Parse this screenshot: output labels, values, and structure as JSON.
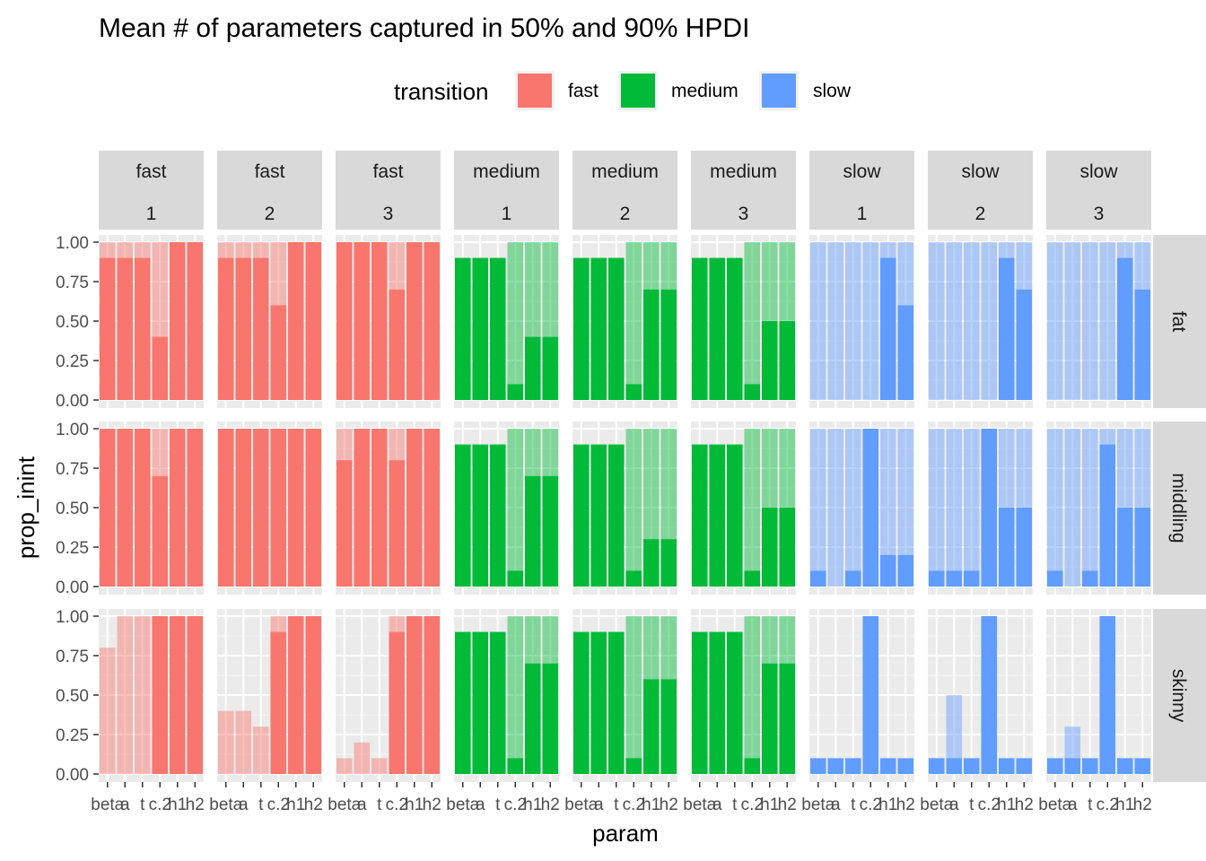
{
  "chart_data": {
    "type": "bar",
    "title": "Mean # of parameters captured in 50% and 90% HPDI",
    "xlabel": "param",
    "ylabel": "prop_inint",
    "categories": [
      "beta",
      "a",
      "t",
      "c.2",
      "h1",
      "h2"
    ],
    "x_tick_labels": [
      "beta",
      "a",
      "t",
      "c.2",
      "h1",
      "h2"
    ],
    "y_ticks": [
      "0.00",
      "0.25",
      "0.50",
      "0.75",
      "1.00"
    ],
    "ylim": [
      0,
      1
    ],
    "grid": true,
    "legend": {
      "title": "transition",
      "position": "top",
      "entries": [
        {
          "label": "fast",
          "color": "#F8766D"
        },
        {
          "label": "medium",
          "color": "#00BA38"
        },
        {
          "label": "slow",
          "color": "#619CFF"
        }
      ]
    },
    "facet_columns": [
      {
        "transition": "fast",
        "index": "1"
      },
      {
        "transition": "fast",
        "index": "2"
      },
      {
        "transition": "fast",
        "index": "3"
      },
      {
        "transition": "medium",
        "index": "1"
      },
      {
        "transition": "medium",
        "index": "2"
      },
      {
        "transition": "medium",
        "index": "3"
      },
      {
        "transition": "slow",
        "index": "1"
      },
      {
        "transition": "slow",
        "index": "2"
      },
      {
        "transition": "slow",
        "index": "3"
      }
    ],
    "facet_rows": [
      "fat",
      "middling",
      "skinny"
    ],
    "series_note": "Per facet: hpdi90 = translucent bar, hpdi50 = solid bar, values in category order",
    "panels": [
      {
        "row": "fat",
        "col": 0,
        "hpdi90": [
          1,
          1,
          1,
          1,
          1,
          1
        ],
        "hpdi50": [
          0.9,
          0.9,
          0.9,
          0.4,
          1,
          1
        ]
      },
      {
        "row": "fat",
        "col": 1,
        "hpdi90": [
          1,
          1,
          1,
          1,
          1,
          1
        ],
        "hpdi50": [
          0.9,
          0.9,
          0.9,
          0.6,
          1,
          1
        ]
      },
      {
        "row": "fat",
        "col": 2,
        "hpdi90": [
          1,
          1,
          1,
          1,
          1,
          1
        ],
        "hpdi50": [
          1,
          1,
          1,
          0.7,
          1,
          1
        ]
      },
      {
        "row": "fat",
        "col": 3,
        "hpdi90": [
          0.9,
          0.9,
          0.9,
          1,
          1,
          1
        ],
        "hpdi50": [
          0.9,
          0.9,
          0.9,
          0.1,
          0.4,
          0.4
        ]
      },
      {
        "row": "fat",
        "col": 4,
        "hpdi90": [
          0.9,
          0.9,
          0.9,
          1,
          1,
          1
        ],
        "hpdi50": [
          0.9,
          0.9,
          0.9,
          0.1,
          0.7,
          0.7
        ]
      },
      {
        "row": "fat",
        "col": 5,
        "hpdi90": [
          0.9,
          0.9,
          0.9,
          1,
          1,
          1
        ],
        "hpdi50": [
          0.9,
          0.9,
          0.9,
          0.1,
          0.5,
          0.5
        ]
      },
      {
        "row": "fat",
        "col": 6,
        "hpdi90": [
          1,
          1,
          1,
          1,
          1,
          1
        ],
        "hpdi50": [
          0,
          0,
          0,
          0,
          0.9,
          0.6
        ]
      },
      {
        "row": "fat",
        "col": 7,
        "hpdi90": [
          1,
          1,
          1,
          1,
          1,
          1
        ],
        "hpdi50": [
          0,
          0,
          0,
          0,
          0.9,
          0.7
        ]
      },
      {
        "row": "fat",
        "col": 8,
        "hpdi90": [
          1,
          1,
          1,
          1,
          1,
          1
        ],
        "hpdi50": [
          0,
          0,
          0,
          0,
          0.9,
          0.7
        ]
      },
      {
        "row": "middling",
        "col": 0,
        "hpdi90": [
          1,
          1,
          1,
          1,
          1,
          1
        ],
        "hpdi50": [
          1,
          1,
          1,
          0.7,
          1,
          1
        ]
      },
      {
        "row": "middling",
        "col": 1,
        "hpdi90": [
          1,
          1,
          1,
          1,
          1,
          1
        ],
        "hpdi50": [
          1,
          1,
          1,
          1,
          1,
          1
        ]
      },
      {
        "row": "middling",
        "col": 2,
        "hpdi90": [
          1,
          1,
          1,
          1,
          1,
          1
        ],
        "hpdi50": [
          0.8,
          1,
          1,
          0.8,
          1,
          1
        ]
      },
      {
        "row": "middling",
        "col": 3,
        "hpdi90": [
          0.9,
          0.9,
          0.9,
          1,
          1,
          1
        ],
        "hpdi50": [
          0.9,
          0.9,
          0.9,
          0.1,
          0.7,
          0.7
        ]
      },
      {
        "row": "middling",
        "col": 4,
        "hpdi90": [
          0.9,
          0.9,
          0.9,
          1,
          1,
          1
        ],
        "hpdi50": [
          0.9,
          0.9,
          0.9,
          0.1,
          0.3,
          0.3
        ]
      },
      {
        "row": "middling",
        "col": 5,
        "hpdi90": [
          0.9,
          0.9,
          0.9,
          1,
          1,
          1
        ],
        "hpdi50": [
          0.9,
          0.9,
          0.9,
          0.1,
          0.5,
          0.5
        ]
      },
      {
        "row": "middling",
        "col": 6,
        "hpdi90": [
          1,
          1,
          1,
          1,
          1,
          1
        ],
        "hpdi50": [
          0.1,
          0,
          0.1,
          1,
          0.2,
          0.2
        ]
      },
      {
        "row": "middling",
        "col": 7,
        "hpdi90": [
          1,
          1,
          1,
          1,
          1,
          1
        ],
        "hpdi50": [
          0.1,
          0.1,
          0.1,
          1,
          0.5,
          0.5
        ]
      },
      {
        "row": "middling",
        "col": 8,
        "hpdi90": [
          1,
          1,
          1,
          1,
          1,
          1
        ],
        "hpdi50": [
          0.1,
          0,
          0.1,
          0.9,
          0.5,
          0.5
        ]
      },
      {
        "row": "skinny",
        "col": 0,
        "hpdi90": [
          0.8,
          1,
          1,
          1,
          1,
          1
        ],
        "hpdi50": [
          0,
          0,
          0,
          1,
          1,
          1
        ]
      },
      {
        "row": "skinny",
        "col": 1,
        "hpdi90": [
          0.4,
          0.4,
          0.3,
          1,
          1,
          1
        ],
        "hpdi50": [
          0,
          0,
          0,
          0.9,
          1,
          1
        ]
      },
      {
        "row": "skinny",
        "col": 2,
        "hpdi90": [
          0.1,
          0.2,
          0.1,
          1,
          1,
          1
        ],
        "hpdi50": [
          0,
          0,
          0,
          0.9,
          1,
          1
        ]
      },
      {
        "row": "skinny",
        "col": 3,
        "hpdi90": [
          0.9,
          0.9,
          0.9,
          1,
          1,
          1
        ],
        "hpdi50": [
          0.9,
          0.9,
          0.9,
          0.1,
          0.7,
          0.7
        ]
      },
      {
        "row": "skinny",
        "col": 4,
        "hpdi90": [
          0.9,
          0.9,
          0.9,
          1,
          1,
          1
        ],
        "hpdi50": [
          0.9,
          0.9,
          0.9,
          0.1,
          0.6,
          0.6
        ]
      },
      {
        "row": "skinny",
        "col": 5,
        "hpdi90": [
          0.9,
          0.9,
          0.9,
          1,
          1,
          1
        ],
        "hpdi50": [
          0.9,
          0.9,
          0.9,
          0.1,
          0.7,
          0.7
        ]
      },
      {
        "row": "skinny",
        "col": 6,
        "hpdi90": [
          0.1,
          0.1,
          0.1,
          1,
          0.1,
          0.1
        ],
        "hpdi50": [
          0.1,
          0.1,
          0.1,
          1,
          0.1,
          0.1
        ]
      },
      {
        "row": "skinny",
        "col": 7,
        "hpdi90": [
          0.1,
          0.5,
          0.1,
          1,
          0.1,
          0.1
        ],
        "hpdi50": [
          0.1,
          0.1,
          0.1,
          1,
          0.1,
          0.1
        ]
      },
      {
        "row": "skinny",
        "col": 8,
        "hpdi90": [
          0.1,
          0.3,
          0.1,
          1,
          0.1,
          0.1
        ],
        "hpdi50": [
          0.1,
          0.1,
          0.1,
          1,
          0.1,
          0.1
        ]
      }
    ]
  }
}
